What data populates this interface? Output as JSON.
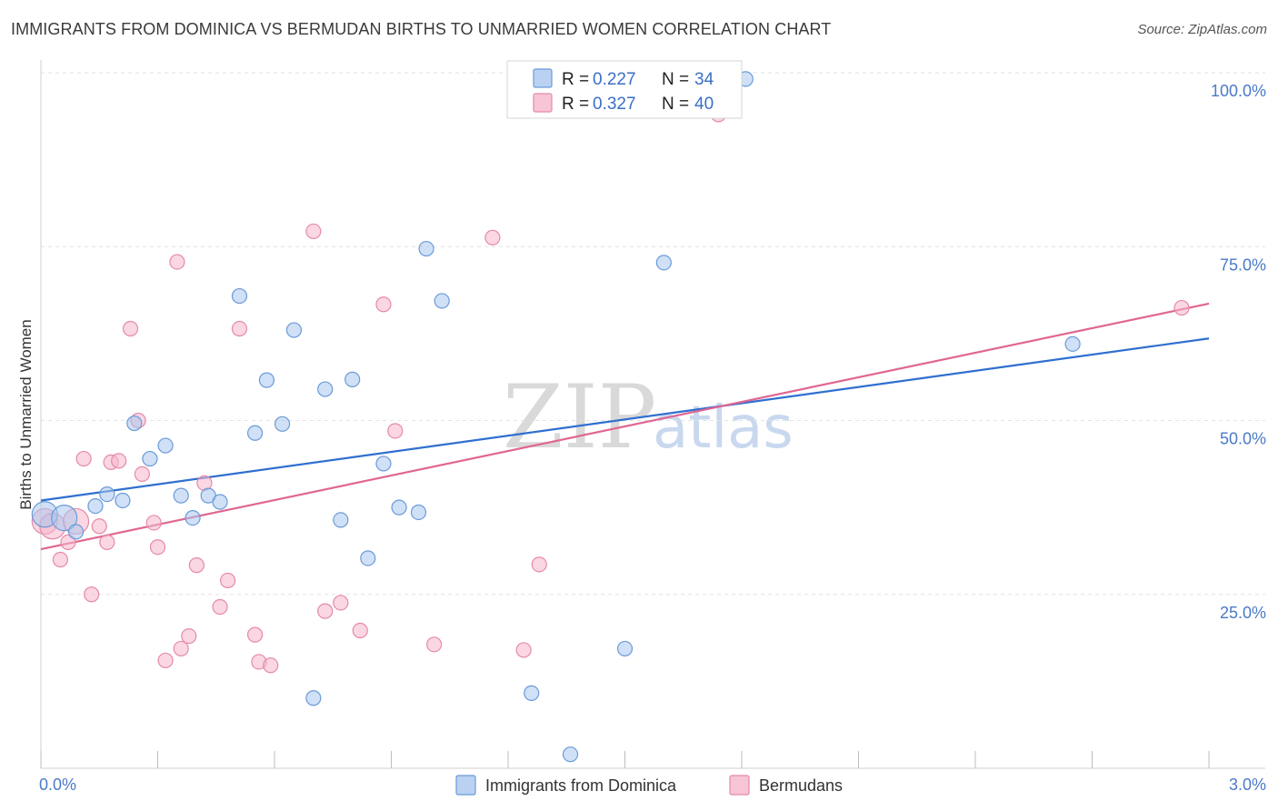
{
  "title": "IMMIGRANTS FROM DOMINICA VS BERMUDAN BIRTHS TO UNMARRIED WOMEN CORRELATION CHART",
  "source": "Source: ZipAtlas.com",
  "watermark": {
    "zip": "ZIP",
    "atlas": "atlas"
  },
  "chart_data": {
    "type": "scatter",
    "title": "IMMIGRANTS FROM DOMINICA VS BERMUDAN BIRTHS TO UNMARRIED WOMEN CORRELATION CHART",
    "xlabel": "",
    "ylabel": "Births to Unmarried Women",
    "xlim": [
      0.0,
      3.0
    ],
    "ylim": [
      0.0,
      100.0
    ],
    "x_tick_labels": [
      "0.0%",
      "3.0%"
    ],
    "y_ticks": [
      25,
      50,
      75,
      100
    ],
    "y_tick_labels": [
      "25.0%",
      "50.0%",
      "75.0%",
      "100.0%"
    ],
    "grid": true,
    "legend_position": "top-center",
    "series": [
      {
        "name": "Immigrants from Dominica",
        "color": "#a9c6ee",
        "edge": "#6a9bd8",
        "line_color": "#2f6fcf",
        "r_label": "R =",
        "r_value": "0.227",
        "n_label": "N =",
        "n_value": "34",
        "trend": {
          "x": [
            0.0,
            3.0
          ],
          "y": [
            38.5,
            61.8
          ]
        },
        "points": [
          [
            0.01,
            36.5
          ],
          [
            0.06,
            36.0
          ],
          [
            0.09,
            34.0
          ],
          [
            0.14,
            37.7
          ],
          [
            0.17,
            39.4
          ],
          [
            0.21,
            38.5
          ],
          [
            0.24,
            49.6
          ],
          [
            0.28,
            44.5
          ],
          [
            0.32,
            46.4
          ],
          [
            0.36,
            39.2
          ],
          [
            0.39,
            36.0
          ],
          [
            0.43,
            39.2
          ],
          [
            0.46,
            38.3
          ],
          [
            0.51,
            67.9
          ],
          [
            0.55,
            48.2
          ],
          [
            0.58,
            55.8
          ],
          [
            0.62,
            49.5
          ],
          [
            0.65,
            63.0
          ],
          [
            0.7,
            10.1
          ],
          [
            0.73,
            54.5
          ],
          [
            0.77,
            35.7
          ],
          [
            0.8,
            55.9
          ],
          [
            0.84,
            30.2
          ],
          [
            0.88,
            43.8
          ],
          [
            0.92,
            37.5
          ],
          [
            0.97,
            36.8
          ],
          [
            0.99,
            74.7
          ],
          [
            1.03,
            67.2
          ],
          [
            1.26,
            10.8
          ],
          [
            1.36,
            2.0
          ],
          [
            1.5,
            17.2
          ],
          [
            1.6,
            72.7
          ],
          [
            1.81,
            99.1
          ],
          [
            2.65,
            61.0
          ]
        ]
      },
      {
        "name": "Bermudans",
        "color": "#f5b7cb",
        "edge": "#e58aa8",
        "line_color": "#e06693",
        "r_label": "R =",
        "r_value": "0.327",
        "n_label": "N =",
        "n_value": "40",
        "trend": {
          "x": [
            0.0,
            3.0
          ],
          "y": [
            31.5,
            66.8
          ]
        },
        "points": [
          [
            0.01,
            35.5
          ],
          [
            0.03,
            34.8
          ],
          [
            0.05,
            30.0
          ],
          [
            0.07,
            32.5
          ],
          [
            0.09,
            35.5
          ],
          [
            0.11,
            44.5
          ],
          [
            0.13,
            25.0
          ],
          [
            0.15,
            34.8
          ],
          [
            0.17,
            32.5
          ],
          [
            0.18,
            44.0
          ],
          [
            0.2,
            44.2
          ],
          [
            0.23,
            63.2
          ],
          [
            0.25,
            50.0
          ],
          [
            0.26,
            42.3
          ],
          [
            0.29,
            35.3
          ],
          [
            0.3,
            31.8
          ],
          [
            0.32,
            15.5
          ],
          [
            0.35,
            72.8
          ],
          [
            0.36,
            17.2
          ],
          [
            0.38,
            19.0
          ],
          [
            0.4,
            29.2
          ],
          [
            0.42,
            41.0
          ],
          [
            0.46,
            23.2
          ],
          [
            0.48,
            27.0
          ],
          [
            0.51,
            63.2
          ],
          [
            0.55,
            19.2
          ],
          [
            0.56,
            15.3
          ],
          [
            0.59,
            14.8
          ],
          [
            0.7,
            77.2
          ],
          [
            0.73,
            22.6
          ],
          [
            0.77,
            23.8
          ],
          [
            0.82,
            19.8
          ],
          [
            0.88,
            66.7
          ],
          [
            0.91,
            48.5
          ],
          [
            1.01,
            17.8
          ],
          [
            1.16,
            76.3
          ],
          [
            1.24,
            17.0
          ],
          [
            1.28,
            29.3
          ],
          [
            1.74,
            94.0
          ],
          [
            2.93,
            66.2
          ]
        ]
      }
    ]
  }
}
